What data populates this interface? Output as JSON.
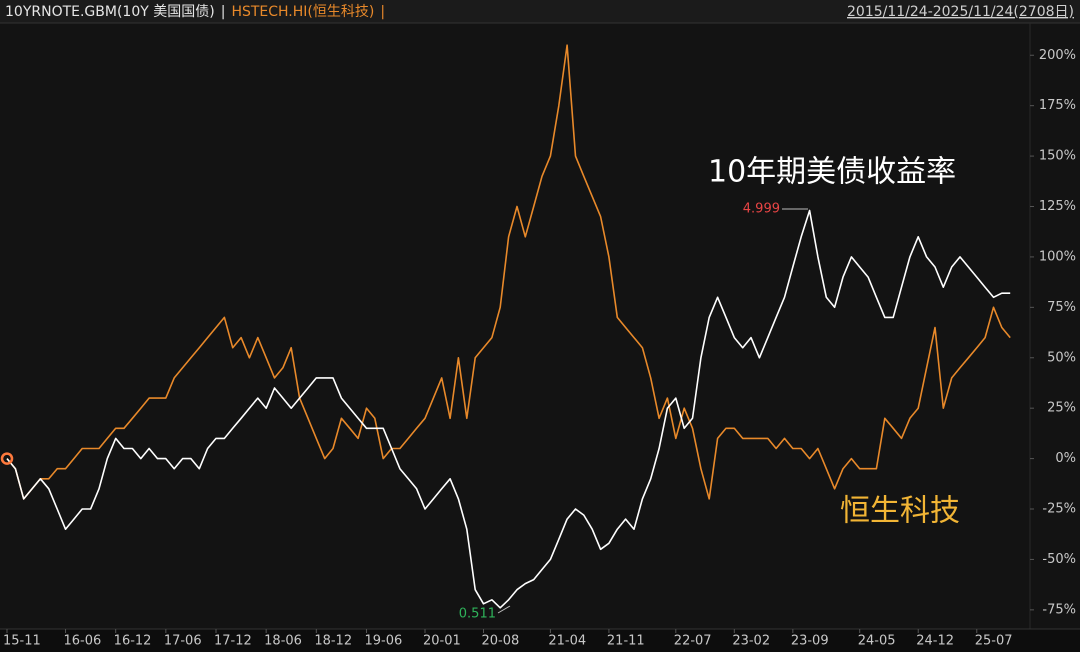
{
  "chart_data": {
    "type": "line",
    "header_separator": "|",
    "date_range": "2015/11/24-2025/11/24(2708日)",
    "annotations": [
      {
        "text": "10年期美债收益率",
        "color": "#ffffff"
      },
      {
        "text": "恒生科技",
        "color": "#f2b535"
      },
      {
        "text": "4.999",
        "color": "#e84545"
      },
      {
        "text": "0.511",
        "color": "#2fb35a"
      }
    ],
    "categories": [
      "15-11",
      null,
      null,
      null,
      null,
      null,
      null,
      "16-06",
      null,
      null,
      null,
      null,
      null,
      "16-12",
      null,
      null,
      null,
      null,
      null,
      "17-06",
      null,
      null,
      null,
      null,
      null,
      "17-12",
      null,
      null,
      null,
      null,
      null,
      "18-06",
      null,
      null,
      null,
      null,
      null,
      "18-12",
      null,
      null,
      null,
      null,
      null,
      "19-06",
      null,
      null,
      null,
      null,
      null,
      null,
      "20-01",
      null,
      null,
      null,
      null,
      null,
      null,
      "20-08",
      null,
      null,
      null,
      null,
      null,
      null,
      null,
      "21-04",
      null,
      null,
      null,
      null,
      null,
      null,
      "21-11",
      null,
      null,
      null,
      null,
      null,
      null,
      null,
      "22-07",
      null,
      null,
      null,
      null,
      null,
      null,
      "23-02",
      null,
      null,
      null,
      null,
      null,
      null,
      "23-09",
      null,
      null,
      null,
      null,
      null,
      null,
      null,
      "24-05",
      null,
      null,
      null,
      null,
      null,
      null,
      "24-12",
      null,
      null,
      null,
      null,
      null,
      null,
      "25-07",
      null,
      null,
      null,
      null
    ],
    "series": [
      {
        "name": "10YRNOTE.GBM(10Y 美国国债)",
        "color": "#ffffff",
        "values": [
          0,
          -5,
          -20,
          -15,
          -10,
          -15,
          -25,
          -35,
          -30,
          -25,
          -25,
          -15,
          0,
          10,
          5,
          5,
          0,
          5,
          0,
          0,
          -5,
          0,
          0,
          -5,
          5,
          10,
          10,
          15,
          20,
          25,
          30,
          25,
          35,
          30,
          25,
          30,
          35,
          40,
          40,
          40,
          30,
          25,
          20,
          15,
          15,
          15,
          5,
          -5,
          -10,
          -15,
          -25,
          -20,
          -15,
          -10,
          -20,
          -35,
          -65,
          -72,
          -70,
          -74,
          -70,
          -65,
          -62,
          -60,
          -55,
          -50,
          -40,
          -30,
          -25,
          -28,
          -35,
          -45,
          -42,
          -35,
          -30,
          -35,
          -20,
          -10,
          5,
          25,
          30,
          15,
          20,
          50,
          70,
          80,
          70,
          60,
          55,
          60,
          50,
          60,
          70,
          80,
          95,
          110,
          123,
          100,
          80,
          75,
          90,
          100,
          95,
          90,
          80,
          70,
          70,
          85,
          100,
          110,
          100,
          95,
          85,
          95,
          100,
          95,
          90,
          85,
          80,
          82,
          82
        ]
      },
      {
        "name": "HSTECH.HI(恒生科技)",
        "color": "#e8892a",
        "values": [
          0,
          -5,
          -20,
          -15,
          -10,
          -10,
          -5,
          -5,
          0,
          5,
          5,
          5,
          10,
          15,
          15,
          20,
          25,
          30,
          30,
          30,
          40,
          45,
          50,
          55,
          60,
          65,
          70,
          55,
          60,
          50,
          60,
          50,
          40,
          45,
          55,
          30,
          20,
          10,
          0,
          5,
          20,
          15,
          10,
          25,
          20,
          0,
          5,
          5,
          10,
          15,
          20,
          30,
          40,
          20,
          50,
          20,
          50,
          55,
          60,
          75,
          110,
          125,
          110,
          125,
          140,
          150,
          175,
          205,
          150,
          140,
          130,
          120,
          100,
          70,
          65,
          60,
          55,
          40,
          20,
          30,
          10,
          25,
          15,
          -5,
          -20,
          10,
          15,
          15,
          10,
          10,
          10,
          10,
          5,
          10,
          5,
          5,
          0,
          5,
          -5,
          -15,
          -5,
          0,
          -5,
          -5,
          -5,
          20,
          15,
          10,
          20,
          25,
          45,
          65,
          25,
          40,
          45,
          50,
          55,
          60,
          75,
          65,
          60
        ]
      }
    ],
    "ylim": [
      -84,
      215
    ],
    "yticks": [
      {
        "value": 200,
        "label": "200%"
      },
      {
        "value": 175,
        "label": "175%"
      },
      {
        "value": 150,
        "label": "150%"
      },
      {
        "value": 125,
        "label": "125%"
      },
      {
        "value": 100,
        "label": "100%"
      },
      {
        "value": 75,
        "label": "75%"
      },
      {
        "value": 50,
        "label": "50%"
      },
      {
        "value": 25,
        "label": "25%"
      },
      {
        "value": 0,
        "label": "0%"
      },
      {
        "value": -25,
        "label": "-25%"
      },
      {
        "value": -50,
        "label": "-50%"
      },
      {
        "value": -75,
        "label": "-75%"
      }
    ],
    "grid": false
  }
}
